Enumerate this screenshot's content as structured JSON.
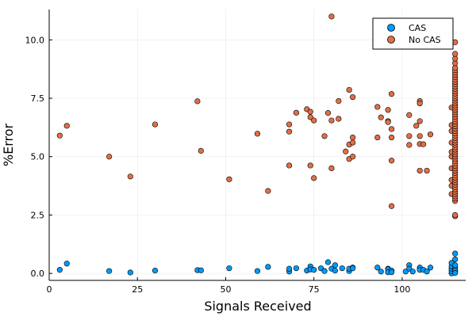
{
  "chart_data": {
    "type": "scatter",
    "title": "",
    "xlabel": "Signals Received",
    "ylabel": "%Error",
    "xlim": [
      0,
      118
    ],
    "ylim": [
      -0.3,
      11.3
    ],
    "xticks": [
      0,
      25,
      50,
      75,
      100
    ],
    "yticks": [
      0.0,
      2.5,
      5.0,
      7.5,
      10.0
    ],
    "xtick_labels": [
      "0",
      "25",
      "50",
      "75",
      "100"
    ],
    "ytick_labels": [
      "0.0",
      "2.5",
      "5.0",
      "7.5",
      "10.0"
    ],
    "grid": true,
    "legend_position": "top-right",
    "series": [
      {
        "name": "CAS",
        "color": "#009AF9",
        "points": [
          [
            3,
            0.15
          ],
          [
            5,
            0.42
          ],
          [
            17,
            0.1
          ],
          [
            23,
            0.04
          ],
          [
            30,
            0.12
          ],
          [
            42,
            0.14
          ],
          [
            43,
            0.13
          ],
          [
            51,
            0.22
          ],
          [
            59,
            0.1
          ],
          [
            62,
            0.28
          ],
          [
            68,
            0.08
          ],
          [
            68,
            0.2
          ],
          [
            70,
            0.22
          ],
          [
            73,
            0.12
          ],
          [
            74,
            0.3
          ],
          [
            74,
            0.17
          ],
          [
            75,
            0.15
          ],
          [
            77,
            0.22
          ],
          [
            78,
            0.1
          ],
          [
            79,
            0.48
          ],
          [
            80,
            0.2
          ],
          [
            81,
            0.35
          ],
          [
            81,
            0.12
          ],
          [
            83,
            0.22
          ],
          [
            85,
            0.1
          ],
          [
            85,
            0.2
          ],
          [
            86,
            0.25
          ],
          [
            86,
            0.22
          ],
          [
            93,
            0.25
          ],
          [
            94,
            0.08
          ],
          [
            96,
            0.2
          ],
          [
            96,
            0.18
          ],
          [
            96,
            0.05
          ],
          [
            97,
            0.12
          ],
          [
            97,
            0.05
          ],
          [
            101,
            0.08
          ],
          [
            102,
            0.35
          ],
          [
            102,
            0.2
          ],
          [
            103,
            0.08
          ],
          [
            105,
            0.25
          ],
          [
            105,
            0.15
          ],
          [
            106,
            0.15
          ],
          [
            107,
            0.08
          ],
          [
            108,
            0.25
          ],
          [
            114,
            0.0
          ],
          [
            114,
            0.1
          ],
          [
            114,
            0.2
          ],
          [
            114,
            0.3
          ],
          [
            114,
            0.45
          ],
          [
            115,
            0.05
          ],
          [
            115,
            0.15
          ],
          [
            115,
            0.25
          ],
          [
            115,
            0.35
          ],
          [
            115,
            0.6
          ],
          [
            115,
            0.85
          ],
          [
            115,
            0.12
          ],
          [
            115,
            0.02
          ]
        ]
      },
      {
        "name": "No CAS",
        "color": "#E26F46",
        "points": [
          [
            3,
            5.9
          ],
          [
            5,
            6.32
          ],
          [
            17,
            5.0
          ],
          [
            23,
            4.15
          ],
          [
            30,
            6.38
          ],
          [
            42,
            7.37
          ],
          [
            43,
            5.25
          ],
          [
            51,
            4.03
          ],
          [
            59,
            5.98
          ],
          [
            62,
            3.53
          ],
          [
            68,
            6.38
          ],
          [
            68,
            6.07
          ],
          [
            68,
            4.62
          ],
          [
            70,
            6.88
          ],
          [
            73,
            7.03
          ],
          [
            74,
            6.92
          ],
          [
            74,
            6.69
          ],
          [
            74,
            4.62
          ],
          [
            75,
            6.55
          ],
          [
            75,
            4.08
          ],
          [
            78,
            5.88
          ],
          [
            79,
            6.87
          ],
          [
            80,
            6.55
          ],
          [
            80,
            4.5
          ],
          [
            80,
            11.0
          ],
          [
            82,
            7.38
          ],
          [
            82,
            6.62
          ],
          [
            84,
            5.22
          ],
          [
            85,
            7.86
          ],
          [
            85,
            5.52
          ],
          [
            85,
            4.9
          ],
          [
            86,
            7.55
          ],
          [
            86,
            5.82
          ],
          [
            86,
            5.6
          ],
          [
            86,
            5.0
          ],
          [
            93,
            7.13
          ],
          [
            93,
            5.82
          ],
          [
            94,
            6.68
          ],
          [
            96,
            7.0
          ],
          [
            96,
            6.52
          ],
          [
            96,
            6.48
          ],
          [
            97,
            7.68
          ],
          [
            97,
            6.18
          ],
          [
            97,
            5.82
          ],
          [
            97,
            4.83
          ],
          [
            97,
            2.88
          ],
          [
            102,
            6.78
          ],
          [
            102,
            5.88
          ],
          [
            102,
            5.5
          ],
          [
            104,
            6.32
          ],
          [
            105,
            7.38
          ],
          [
            105,
            7.28
          ],
          [
            105,
            6.52
          ],
          [
            105,
            5.88
          ],
          [
            105,
            5.54
          ],
          [
            105,
            4.4
          ],
          [
            106,
            5.53
          ],
          [
            107,
            4.4
          ],
          [
            108,
            5.95
          ],
          [
            114,
            3.4
          ],
          [
            114,
            4.0
          ],
          [
            114,
            4.5
          ],
          [
            114,
            5.0
          ],
          [
            114,
            5.2
          ],
          [
            114,
            5.6
          ],
          [
            114,
            6.1
          ],
          [
            114,
            6.35
          ],
          [
            114,
            7.1
          ],
          [
            114,
            3.75
          ],
          [
            115,
            2.45
          ],
          [
            115,
            2.5
          ],
          [
            115,
            3.1
          ],
          [
            115,
            3.2
          ],
          [
            115,
            3.3
          ],
          [
            115,
            3.4
          ],
          [
            115,
            3.5
          ],
          [
            115,
            3.6
          ],
          [
            115,
            3.7
          ],
          [
            115,
            3.8
          ],
          [
            115,
            3.9
          ],
          [
            115,
            4.0
          ],
          [
            115,
            4.1
          ],
          [
            115,
            4.2
          ],
          [
            115,
            4.3
          ],
          [
            115,
            4.4
          ],
          [
            115,
            4.5
          ],
          [
            115,
            4.6
          ],
          [
            115,
            4.7
          ],
          [
            115,
            4.8
          ],
          [
            115,
            4.9
          ],
          [
            115,
            5.0
          ],
          [
            115,
            5.1
          ],
          [
            115,
            5.2
          ],
          [
            115,
            5.3
          ],
          [
            115,
            5.4
          ],
          [
            115,
            5.5
          ],
          [
            115,
            5.6
          ],
          [
            115,
            5.7
          ],
          [
            115,
            5.8
          ],
          [
            115,
            5.9
          ],
          [
            115,
            6.0
          ],
          [
            115,
            6.1
          ],
          [
            115,
            6.2
          ],
          [
            115,
            6.3
          ],
          [
            115,
            6.4
          ],
          [
            115,
            6.5
          ],
          [
            115,
            6.6
          ],
          [
            115,
            6.7
          ],
          [
            115,
            6.8
          ],
          [
            115,
            6.9
          ],
          [
            115,
            7.0
          ],
          [
            115,
            7.1
          ],
          [
            115,
            7.2
          ],
          [
            115,
            7.3
          ],
          [
            115,
            7.4
          ],
          [
            115,
            7.5
          ],
          [
            115,
            7.6
          ],
          [
            115,
            7.7
          ],
          [
            115,
            7.8
          ],
          [
            115,
            7.9
          ],
          [
            115,
            8.0
          ],
          [
            115,
            8.1
          ],
          [
            115,
            8.2
          ],
          [
            115,
            8.3
          ],
          [
            115,
            8.4
          ],
          [
            115,
            8.5
          ],
          [
            115,
            8.6
          ],
          [
            115,
            8.7
          ],
          [
            115,
            8.8
          ],
          [
            115,
            9.0
          ],
          [
            115,
            9.2
          ],
          [
            115,
            9.4
          ],
          [
            115,
            9.9
          ]
        ]
      }
    ]
  }
}
